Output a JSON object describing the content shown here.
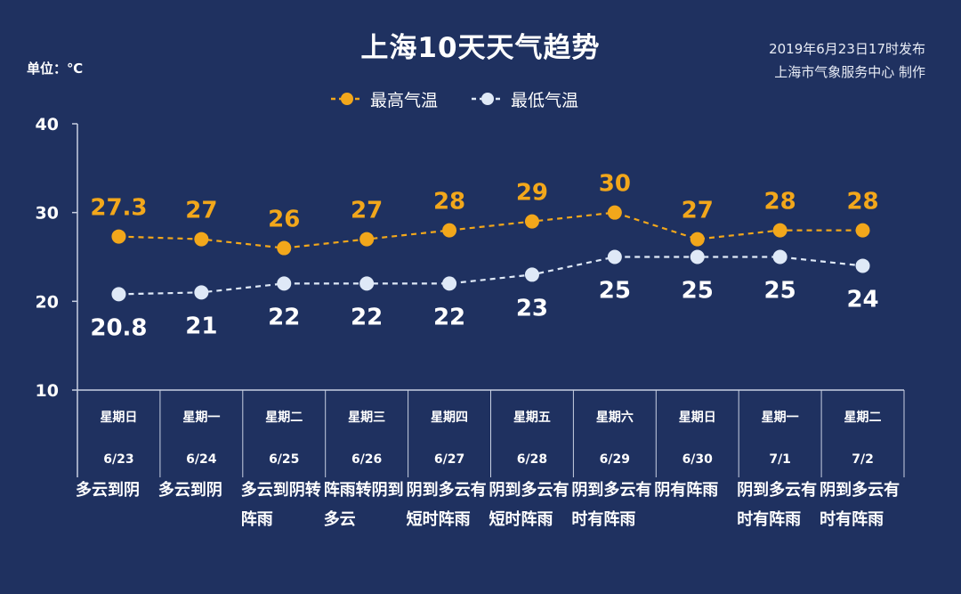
{
  "header": {
    "title": "上海10天天气趋势",
    "unit_label": "单位：℃",
    "issued_time": "2019年6月23日17时发布",
    "issuer": "上海市气象服务中心  制作"
  },
  "legend": {
    "high_label": "最高气温",
    "low_label": "最低气温"
  },
  "colors": {
    "background": "#1f3160",
    "high": "#f2a71b",
    "low": "#dfe9f7",
    "axis": "#c8d0e2"
  },
  "chart_data": {
    "type": "line",
    "title": "上海10天天气趋势",
    "ylabel": "单位：℃",
    "ylim": [
      10,
      40
    ],
    "yticks": [
      10,
      20,
      30,
      40
    ],
    "grid": false,
    "legend_position": "top-center",
    "categories": [
      "6/23",
      "6/24",
      "6/25",
      "6/26",
      "6/27",
      "6/28",
      "6/29",
      "6/30",
      "7/1",
      "7/2"
    ],
    "weekdays": [
      "星期日",
      "星期一",
      "星期二",
      "星期三",
      "星期四",
      "星期五",
      "星期六",
      "星期日",
      "星期一",
      "星期二"
    ],
    "weather": [
      "多云到阴",
      "多云到阴",
      "多云到阴转阵雨",
      "阵雨转阴到多云",
      "阴到多云有短时阵雨",
      "阴到多云有短时阵雨",
      "阴到多云有时有阵雨",
      "阴有阵雨",
      "阴到多云有时有阵雨",
      "阴到多云有时有阵雨"
    ],
    "series": [
      {
        "name": "最高气温",
        "values": [
          27.3,
          27,
          26,
          27,
          28,
          29,
          30,
          27,
          28,
          28
        ],
        "labels": [
          "27.3",
          "27",
          "26",
          "27",
          "28",
          "29",
          "30",
          "27",
          "28",
          "28"
        ]
      },
      {
        "name": "最低气温",
        "values": [
          20.8,
          21,
          22,
          22,
          22,
          23,
          25,
          25,
          25,
          24
        ],
        "labels": [
          "20.8",
          "21",
          "22",
          "22",
          "22",
          "23",
          "25",
          "25",
          "25",
          "24"
        ]
      }
    ]
  }
}
